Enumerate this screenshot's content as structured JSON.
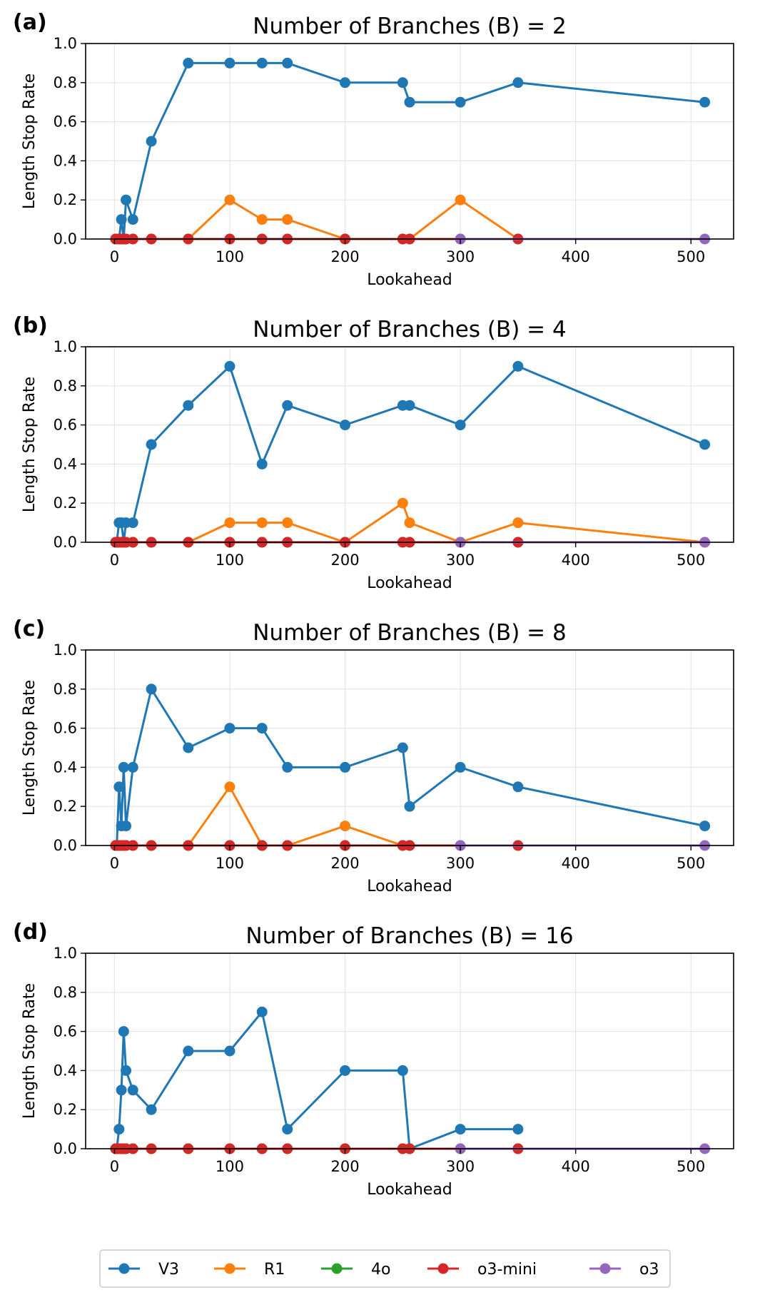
{
  "figure": {
    "legend": [
      {
        "name": "V3",
        "color": "#1f77b4"
      },
      {
        "name": "R1",
        "color": "#ff7f0e"
      },
      {
        "name": "4o",
        "color": "#2ca02c"
      },
      {
        "name": "o3-mini",
        "color": "#d62728"
      },
      {
        "name": "o3",
        "color": "#9467bd"
      }
    ]
  },
  "chart_data": [
    {
      "panel": "(a)",
      "type": "line",
      "title": "Number of Branches (B) = 2",
      "xlabel": "Lookahead",
      "ylabel": "Length Stop Rate",
      "xlim": [
        -25,
        537
      ],
      "ylim": [
        0,
        1.0
      ],
      "xticks": [
        0,
        100,
        200,
        300,
        400,
        500
      ],
      "yticks": [
        0.0,
        0.2,
        0.4,
        0.6,
        0.8,
        1.0
      ],
      "grid": true,
      "series": [
        {
          "name": "V3",
          "color": "#1f77b4",
          "x": [
            1,
            2,
            4,
            6,
            8,
            10,
            16,
            32,
            64,
            100,
            128,
            150,
            200,
            250,
            256,
            300,
            350,
            512
          ],
          "y": [
            0.0,
            0.0,
            0.0,
            0.1,
            0.0,
            0.2,
            0.1,
            0.5,
            0.9,
            0.9,
            0.9,
            0.9,
            0.8,
            0.8,
            0.7,
            0.7,
            0.8,
            0.7
          ]
        },
        {
          "name": "R1",
          "color": "#ff7f0e",
          "x": [
            1,
            2,
            4,
            6,
            8,
            10,
            16,
            32,
            64,
            100,
            128,
            150,
            200,
            250,
            256,
            300,
            350
          ],
          "y": [
            0.0,
            0.0,
            0.0,
            0.0,
            0.0,
            0.0,
            0.0,
            0.0,
            0.0,
            0.2,
            0.1,
            0.1,
            0.0,
            0.0,
            0.0,
            0.2,
            0.0
          ]
        },
        {
          "name": "4o",
          "color": "#2ca02c",
          "x": [
            1,
            2,
            4,
            6,
            8,
            10,
            16,
            32,
            64,
            100,
            128,
            150,
            200,
            250,
            256,
            300,
            350
          ],
          "y": [
            0,
            0,
            0,
            0,
            0,
            0,
            0,
            0,
            0,
            0,
            0,
            0,
            0,
            0,
            0,
            0,
            0
          ]
        },
        {
          "name": "o3-mini",
          "color": "#d62728",
          "x": [
            1,
            2,
            4,
            6,
            8,
            10,
            16,
            32,
            64,
            100,
            128,
            150,
            200,
            250,
            256,
            350
          ],
          "y": [
            0,
            0,
            0,
            0,
            0,
            0,
            0,
            0,
            0,
            0,
            0,
            0,
            0,
            0,
            0,
            0
          ]
        },
        {
          "name": "o3",
          "color": "#9467bd",
          "x": [
            300,
            512
          ],
          "y": [
            0,
            0
          ]
        }
      ]
    },
    {
      "panel": "(b)",
      "type": "line",
      "title": "Number of Branches (B) = 4",
      "xlabel": "Lookahead",
      "ylabel": "Length Stop Rate",
      "xlim": [
        -25,
        537
      ],
      "ylim": [
        0,
        1.0
      ],
      "xticks": [
        0,
        100,
        200,
        300,
        400,
        500
      ],
      "yticks": [
        0.0,
        0.2,
        0.4,
        0.6,
        0.8,
        1.0
      ],
      "grid": true,
      "series": [
        {
          "name": "V3",
          "color": "#1f77b4",
          "x": [
            1,
            2,
            4,
            6,
            8,
            10,
            16,
            32,
            64,
            100,
            128,
            150,
            200,
            250,
            256,
            300,
            350,
            512
          ],
          "y": [
            0.0,
            0.0,
            0.1,
            0.1,
            0.0,
            0.1,
            0.1,
            0.5,
            0.7,
            0.9,
            0.4,
            0.7,
            0.6,
            0.7,
            0.7,
            0.6,
            0.9,
            0.5
          ]
        },
        {
          "name": "R1",
          "color": "#ff7f0e",
          "x": [
            1,
            2,
            4,
            6,
            8,
            10,
            16,
            32,
            64,
            100,
            128,
            150,
            200,
            250,
            256,
            300,
            350,
            512
          ],
          "y": [
            0.0,
            0.0,
            0.0,
            0.0,
            0.0,
            0.0,
            0.0,
            0.0,
            0.0,
            0.1,
            0.1,
            0.1,
            0.0,
            0.2,
            0.1,
            0.0,
            0.1,
            0.0
          ]
        },
        {
          "name": "4o",
          "color": "#2ca02c",
          "x": [
            1,
            2,
            4,
            6,
            8,
            10,
            16,
            32,
            64,
            100,
            128,
            150,
            200,
            250,
            256,
            300,
            350
          ],
          "y": [
            0,
            0,
            0,
            0,
            0,
            0,
            0,
            0,
            0,
            0,
            0,
            0,
            0,
            0,
            0,
            0,
            0
          ]
        },
        {
          "name": "o3-mini",
          "color": "#d62728",
          "x": [
            1,
            2,
            4,
            6,
            8,
            10,
            16,
            32,
            64,
            100,
            128,
            150,
            200,
            250,
            256,
            350
          ],
          "y": [
            0,
            0,
            0,
            0,
            0,
            0,
            0,
            0,
            0,
            0,
            0,
            0,
            0,
            0,
            0,
            0
          ]
        },
        {
          "name": "o3",
          "color": "#9467bd",
          "x": [
            300,
            512
          ],
          "y": [
            0,
            0
          ]
        }
      ]
    },
    {
      "panel": "(c)",
      "type": "line",
      "title": "Number of Branches (B) = 8",
      "xlabel": "Lookahead",
      "ylabel": "Length Stop Rate",
      "xlim": [
        -25,
        537
      ],
      "ylim": [
        0,
        1.0
      ],
      "xticks": [
        0,
        100,
        200,
        300,
        400,
        500
      ],
      "yticks": [
        0.0,
        0.2,
        0.4,
        0.6,
        0.8,
        1.0
      ],
      "grid": true,
      "series": [
        {
          "name": "V3",
          "color": "#1f77b4",
          "x": [
            1,
            2,
            4,
            6,
            8,
            10,
            16,
            32,
            64,
            100,
            128,
            150,
            200,
            250,
            256,
            300,
            350,
            512
          ],
          "y": [
            0.0,
            0.0,
            0.3,
            0.1,
            0.4,
            0.1,
            0.4,
            0.8,
            0.5,
            0.6,
            0.6,
            0.4,
            0.4,
            0.5,
            0.2,
            0.4,
            0.3,
            0.1
          ]
        },
        {
          "name": "R1",
          "color": "#ff7f0e",
          "x": [
            1,
            2,
            4,
            6,
            8,
            10,
            16,
            32,
            64,
            100,
            128,
            150,
            200,
            250,
            256
          ],
          "y": [
            0.0,
            0.0,
            0.0,
            0.0,
            0.0,
            0.0,
            0.0,
            0.0,
            0.0,
            0.3,
            0.0,
            0.0,
            0.1,
            0.0,
            0.0
          ]
        },
        {
          "name": "4o",
          "color": "#2ca02c",
          "x": [
            1,
            2,
            4,
            6,
            8,
            10,
            16,
            32,
            64,
            100,
            128,
            150,
            200,
            250,
            256,
            300,
            350
          ],
          "y": [
            0,
            0,
            0,
            0,
            0,
            0,
            0,
            0,
            0,
            0,
            0,
            0,
            0,
            0,
            0,
            0,
            0
          ]
        },
        {
          "name": "o3-mini",
          "color": "#d62728",
          "x": [
            1,
            2,
            4,
            6,
            8,
            10,
            16,
            32,
            64,
            100,
            128,
            150,
            200,
            250,
            256,
            350
          ],
          "y": [
            0,
            0,
            0,
            0,
            0,
            0,
            0,
            0,
            0,
            0,
            0,
            0,
            0,
            0,
            0,
            0
          ]
        },
        {
          "name": "o3",
          "color": "#9467bd",
          "x": [
            300,
            512
          ],
          "y": [
            0,
            0
          ]
        }
      ]
    },
    {
      "panel": "(d)",
      "type": "line",
      "title": "Number of Branches (B) = 16",
      "xlabel": "Lookahead",
      "ylabel": "Length Stop Rate",
      "xlim": [
        -25,
        537
      ],
      "ylim": [
        0,
        1.0
      ],
      "xticks": [
        0,
        100,
        200,
        300,
        400,
        500
      ],
      "yticks": [
        0.0,
        0.2,
        0.4,
        0.6,
        0.8,
        1.0
      ],
      "grid": true,
      "series": [
        {
          "name": "V3",
          "color": "#1f77b4",
          "x": [
            1,
            2,
            4,
            6,
            8,
            10,
            16,
            32,
            64,
            100,
            128,
            150,
            200,
            250,
            256,
            300,
            350
          ],
          "y": [
            0.0,
            0.0,
            0.1,
            0.3,
            0.6,
            0.4,
            0.3,
            0.2,
            0.5,
            0.5,
            0.7,
            0.1,
            0.4,
            0.4,
            0.0,
            0.1,
            0.1
          ]
        },
        {
          "name": "R1",
          "color": "#ff7f0e",
          "x": [
            1,
            2,
            4,
            6,
            8,
            10,
            16,
            32,
            64,
            100,
            128,
            150,
            200,
            250,
            256,
            300,
            350
          ],
          "y": [
            0,
            0,
            0,
            0,
            0,
            0,
            0,
            0,
            0,
            0,
            0,
            0,
            0,
            0,
            0,
            0,
            0
          ]
        },
        {
          "name": "4o",
          "color": "#2ca02c",
          "x": [
            1,
            2,
            4,
            6,
            8,
            10,
            16,
            32,
            64,
            100,
            128,
            150,
            200,
            250,
            256,
            300,
            350
          ],
          "y": [
            0,
            0,
            0,
            0,
            0,
            0,
            0,
            0,
            0,
            0,
            0,
            0,
            0,
            0,
            0,
            0,
            0
          ]
        },
        {
          "name": "o3-mini",
          "color": "#d62728",
          "x": [
            1,
            2,
            4,
            6,
            8,
            10,
            16,
            32,
            64,
            100,
            128,
            150,
            200,
            250,
            256,
            350
          ],
          "y": [
            0,
            0,
            0,
            0,
            0,
            0,
            0,
            0,
            0,
            0,
            0,
            0,
            0,
            0,
            0,
            0
          ]
        },
        {
          "name": "o3",
          "color": "#9467bd",
          "x": [
            300,
            512
          ],
          "y": [
            0,
            0
          ]
        }
      ]
    }
  ]
}
